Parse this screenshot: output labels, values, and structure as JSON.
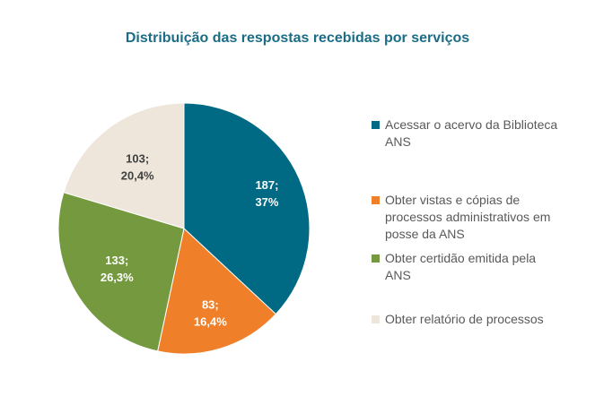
{
  "chart_data": {
    "type": "pie",
    "title": "Distribuição das respostas recebidas por serviços",
    "legend_position": "right",
    "slices": [
      {
        "name": "Acessar o acervo da Biblioteca ANS",
        "value": 187,
        "percent_label": "37%",
        "color": "#006A84",
        "label_color": "#ffffff"
      },
      {
        "name": "Obter vistas e cópias de processos administrativos em posse da ANS",
        "value": 83,
        "percent_label": "16,4%",
        "color": "#F07F2A",
        "label_color": "#ffffff"
      },
      {
        "name": "Obter certidão emitida pela ANS",
        "value": 133,
        "percent_label": "26,3%",
        "color": "#74993F",
        "label_color": "#ffffff"
      },
      {
        "name": "Obter relatório de processos",
        "value": 103,
        "percent_label": "20,4%",
        "color": "#EEE6DB",
        "label_color": "#404040"
      }
    ]
  }
}
